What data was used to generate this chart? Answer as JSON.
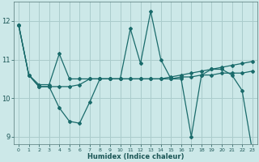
{
  "title": "",
  "xlabel": "Humidex (Indice chaleur)",
  "bg_color": "#cce8e8",
  "grid_color": "#aacccc",
  "line_color": "#1a6b6b",
  "xlim": [
    -0.5,
    23.5
  ],
  "ylim": [
    8.8,
    12.5
  ],
  "yticks": [
    9,
    10,
    11,
    12
  ],
  "xticks": [
    0,
    1,
    2,
    3,
    4,
    5,
    6,
    7,
    8,
    9,
    10,
    11,
    12,
    13,
    14,
    15,
    16,
    17,
    18,
    19,
    20,
    21,
    22,
    23
  ],
  "series": [
    [
      11.9,
      10.6,
      10.3,
      10.3,
      9.75,
      9.4,
      9.35,
      9.9,
      10.5,
      10.5,
      10.5,
      11.8,
      10.9,
      12.25,
      11.0,
      10.5,
      10.5,
      9.0,
      10.6,
      10.75,
      10.75,
      10.6,
      10.2,
      8.65
    ],
    [
      11.9,
      10.6,
      10.35,
      10.35,
      11.15,
      10.5,
      10.5,
      10.5,
      10.5,
      10.5,
      10.5,
      10.5,
      10.5,
      10.5,
      10.5,
      10.55,
      10.6,
      10.65,
      10.7,
      10.75,
      10.8,
      10.85,
      10.9,
      10.95
    ],
    [
      11.9,
      10.6,
      10.3,
      10.3,
      10.3,
      10.3,
      10.35,
      10.5,
      10.5,
      10.5,
      10.5,
      10.5,
      10.5,
      10.5,
      10.5,
      10.5,
      10.55,
      10.55,
      10.6,
      10.6,
      10.65,
      10.65,
      10.65,
      10.7
    ]
  ]
}
